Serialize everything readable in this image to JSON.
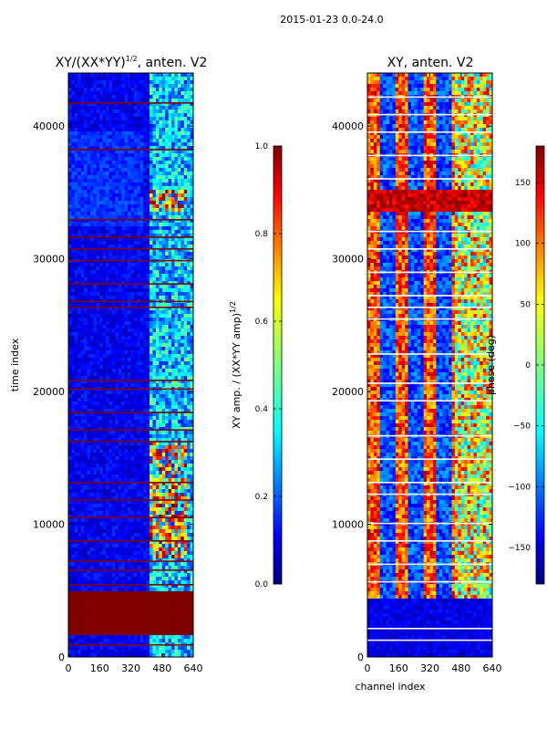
{
  "suptitle": "2015-01-23 0.0-24.0",
  "chart_data": [
    {
      "type": "heatmap",
      "title": "XY/(XX*YY)",
      "title_exponent": "1/2",
      "title_suffix": ", anten. V2",
      "xlabel": "",
      "ylabel": "time index",
      "xlim": [
        0,
        640
      ],
      "ylim": [
        0,
        44000
      ],
      "xticks": [
        0,
        160,
        320,
        480,
        640
      ],
      "yticks": [
        0,
        10000,
        20000,
        30000,
        40000
      ],
      "colorbar": {
        "label": "XY amp. / (XX*YY amp)",
        "label_exponent": "1/2",
        "range": [
          0.0,
          1.0
        ],
        "ticks": [
          "0.0",
          "0.2",
          "0.4",
          "0.6",
          "0.8",
          "1.0"
        ],
        "colormap": "jet"
      }
    },
    {
      "type": "heatmap",
      "title": "XY, anten. V2",
      "xlabel": "channel index",
      "ylabel": "",
      "xlim": [
        0,
        640
      ],
      "ylim": [
        0,
        44000
      ],
      "xticks": [
        0,
        160,
        320,
        480,
        640
      ],
      "yticks": [
        0,
        10000,
        20000,
        30000,
        40000
      ],
      "colorbar": {
        "label": "phase (deg)",
        "range": [
          -180,
          180
        ],
        "ticks": [
          "150",
          "100",
          "50",
          "0",
          "−50",
          "−100",
          "−150"
        ],
        "colormap": "jet"
      }
    }
  ],
  "colors": {
    "dark_blue": "#00007f",
    "blue": "#0000ff",
    "cyan": "#00ffff",
    "yellow": "#ffff00",
    "red": "#ff0000",
    "dark_red": "#7f0000"
  }
}
